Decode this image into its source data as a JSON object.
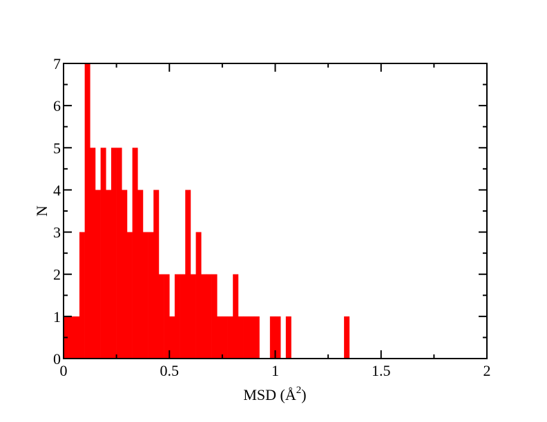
{
  "colors": {
    "bar": "#ff0000",
    "axis": "#000000",
    "background": "#ffffff"
  },
  "chart_data": {
    "type": "bar",
    "bin_width": 0.025,
    "bin_starts": [
      0.0,
      0.025,
      0.05,
      0.075,
      0.1,
      0.125,
      0.15,
      0.175,
      0.2,
      0.225,
      0.25,
      0.275,
      0.3,
      0.325,
      0.35,
      0.375,
      0.4,
      0.425,
      0.45,
      0.475,
      0.5,
      0.525,
      0.55,
      0.575,
      0.6,
      0.625,
      0.65,
      0.675,
      0.7,
      0.725,
      0.75,
      0.775,
      0.8,
      0.825,
      0.85,
      0.875,
      0.9,
      0.925,
      0.95,
      0.975,
      1.0,
      1.025,
      1.05,
      1.075,
      1.1,
      1.125,
      1.15,
      1.175,
      1.2,
      1.225,
      1.25,
      1.275,
      1.3,
      1.325,
      1.35,
      1.375
    ],
    "values": [
      1,
      1,
      1,
      3,
      7,
      5,
      4,
      5,
      4,
      5,
      5,
      4,
      3,
      5,
      4,
      3,
      3,
      4,
      2,
      2,
      1,
      2,
      2,
      4,
      2,
      3,
      2,
      2,
      2,
      1,
      1,
      1,
      2,
      1,
      1,
      1,
      1,
      0,
      0,
      1,
      1,
      0,
      1,
      0,
      0,
      0,
      0,
      0,
      0,
      0,
      0,
      0,
      0,
      1,
      0,
      0
    ],
    "xlabel": "MSD (Å",
    "xlabel_sup": "2",
    "xlabel_end": ")",
    "ylabel": "N",
    "xlim": [
      0,
      2
    ],
    "ylim": [
      0,
      7
    ],
    "x_ticks": [
      {
        "value": 0,
        "label": "0"
      },
      {
        "value": 0.5,
        "label": "0.5"
      },
      {
        "value": 1,
        "label": "1"
      },
      {
        "value": 1.5,
        "label": "1.5"
      },
      {
        "value": 2,
        "label": "2"
      }
    ],
    "y_ticks": [
      {
        "value": 0,
        "label": "0"
      },
      {
        "value": 1,
        "label": "1"
      },
      {
        "value": 2,
        "label": "2"
      },
      {
        "value": 3,
        "label": "3"
      },
      {
        "value": 4,
        "label": "4"
      },
      {
        "value": 5,
        "label": "5"
      },
      {
        "value": 6,
        "label": "6"
      },
      {
        "value": 7,
        "label": "7"
      }
    ],
    "grid": false,
    "legend": "none"
  }
}
